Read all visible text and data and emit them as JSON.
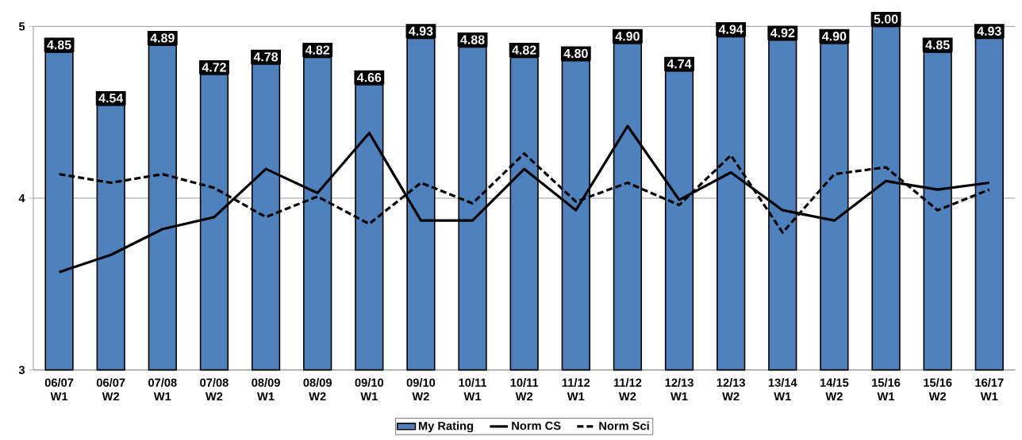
{
  "chart_data": {
    "type": "bar",
    "categories": [
      "06/07 W1",
      "06/07 W2",
      "07/08 W1",
      "07/08 W2",
      "08/09 W1",
      "08/09 W2",
      "09/10 W1",
      "09/10 W2",
      "10/11 W1",
      "10/11 W2",
      "11/12 W1",
      "11/12 W2",
      "12/13 W1",
      "12/13 W2",
      "13/14 W1",
      "14/15 W2",
      "15/16 W1",
      "15/16 W2",
      "16/17 W1"
    ],
    "series": [
      {
        "name": "My Rating",
        "color": "#4f81bd",
        "values": [
          4.85,
          4.54,
          4.89,
          4.72,
          4.78,
          4.82,
          4.66,
          4.93,
          4.88,
          4.82,
          4.8,
          4.9,
          4.74,
          4.94,
          4.92,
          4.9,
          5.0,
          4.85,
          4.93
        ],
        "value_labels": [
          "4.85",
          "4.54",
          "4.89",
          "4.72",
          "4.78",
          "4.82",
          "4.66",
          "4.93",
          "4.88",
          "4.82",
          "4.80",
          "4.90",
          "4.74",
          "4.94",
          "4.92",
          "4.90",
          "5.00",
          "4.85",
          "4.93"
        ]
      },
      {
        "name": "Norm CS",
        "type": "line",
        "color": "#000000",
        "line_style": "solid",
        "values": [
          3.57,
          3.67,
          3.82,
          3.89,
          4.17,
          4.03,
          4.38,
          3.87,
          3.87,
          4.17,
          3.93,
          4.42,
          3.99,
          4.15,
          3.93,
          3.87,
          4.1,
          4.05,
          4.09
        ]
      },
      {
        "name": "Norm Sci",
        "type": "line",
        "color": "#000000",
        "line_style": "dashed",
        "values": [
          4.14,
          4.09,
          4.14,
          4.06,
          3.89,
          4.01,
          3.85,
          4.09,
          3.97,
          4.26,
          3.98,
          4.09,
          3.96,
          4.25,
          3.8,
          4.14,
          4.18,
          3.93,
          4.05
        ]
      }
    ],
    "ylim": [
      3,
      5
    ],
    "yticks": [
      3,
      4,
      5
    ],
    "grid": "y",
    "legend": "bottom",
    "marker": "none"
  }
}
